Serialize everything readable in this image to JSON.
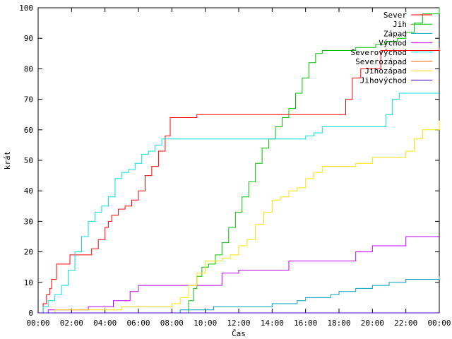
{
  "chart_data": {
    "type": "line",
    "xlabel": "Čas",
    "ylabel": "krát",
    "xlim": [
      0,
      24
    ],
    "ylim": [
      0,
      100
    ],
    "xticks": [
      "00:00",
      "02:00",
      "04:00",
      "06:00",
      "08:00",
      "10:00",
      "12:00",
      "14:00",
      "16:00",
      "18:00",
      "20:00",
      "22:00",
      "00:00"
    ],
    "yticks": [
      0,
      10,
      20,
      30,
      40,
      50,
      60,
      70,
      80,
      90,
      100
    ],
    "grid": false,
    "legend_position": "top-right",
    "series": [
      {
        "name": "Sever",
        "color": "#ff0000",
        "x": [
          0,
          0.3,
          0.5,
          0.7,
          0.8,
          1.1,
          1.7,
          1.9,
          2.8,
          3.2,
          3.6,
          4.0,
          4.2,
          4.4,
          4.8,
          5.2,
          5.6,
          6.0,
          6.4,
          6.8,
          7.2,
          7.6,
          7.9,
          9.5,
          18.0,
          18.4,
          18.8,
          19.3,
          20.5,
          24
        ],
        "y": [
          0,
          3,
          6,
          8,
          11,
          16,
          16,
          19,
          19,
          21,
          24,
          28,
          30,
          32,
          34,
          35,
          37,
          40,
          45,
          48,
          53,
          58,
          64,
          65,
          65,
          70,
          77,
          80,
          86,
          87
        ]
      },
      {
        "name": "Jih",
        "color": "#00c000",
        "x": [
          0,
          8.8,
          9.0,
          9.3,
          9.5,
          9.8,
          10.2,
          10.6,
          11.0,
          11.4,
          11.8,
          12.2,
          12.6,
          13.0,
          13.4,
          13.8,
          14.2,
          14.6,
          15.0,
          15.4,
          15.8,
          16.2,
          16.6,
          17.0,
          17.4,
          17.8,
          18.5,
          19.0,
          20.2,
          20.8,
          21.5,
          22.0,
          22.5,
          23.0,
          24
        ],
        "y": [
          0,
          0,
          4,
          8,
          12,
          15,
          16,
          19,
          23,
          28,
          33,
          38,
          43,
          49,
          54,
          57,
          61,
          64,
          67,
          72,
          77,
          82,
          85,
          86,
          86,
          86,
          86,
          87,
          88,
          89,
          90,
          92,
          95,
          98,
          100
        ]
      },
      {
        "name": "Západ",
        "color": "#00a0c0",
        "x": [
          0,
          8.0,
          8.5,
          9.5,
          10.5,
          12.0,
          14.0,
          14.5,
          15.5,
          16.0,
          17.5,
          18.0,
          19.0,
          20.0,
          21.0,
          22.0,
          24
        ],
        "y": [
          0,
          0,
          1,
          1,
          2,
          2,
          3,
          3,
          4,
          5,
          6,
          7,
          8,
          9,
          10,
          11,
          12
        ]
      },
      {
        "name": "Východ",
        "color": "#c000ff",
        "x": [
          0,
          0.6,
          1.5,
          2.0,
          3.0,
          4.5,
          5.5,
          6.0,
          7.0,
          8.0,
          9.0,
          9.5,
          10.0,
          11.0,
          12.0,
          13.0,
          14.0,
          15.0,
          16.0,
          17.0,
          18.0,
          19.0,
          20.0,
          21.0,
          22.0,
          24
        ],
        "y": [
          0,
          1,
          1,
          1,
          2,
          4,
          7,
          9,
          9,
          9,
          9,
          9,
          9,
          13,
          14,
          14,
          14,
          17,
          17,
          17,
          17,
          20,
          22,
          22,
          25,
          25
        ]
      },
      {
        "name": "Severovýchod",
        "color": "#00e0e0",
        "x": [
          0,
          0.3,
          0.6,
          1.0,
          1.4,
          1.8,
          2.2,
          2.6,
          3.0,
          3.4,
          3.8,
          4.2,
          4.6,
          5.0,
          5.4,
          5.8,
          6.2,
          6.6,
          7.0,
          7.4,
          8.0,
          10.0,
          12.0,
          14.0,
          15.5,
          16.0,
          16.5,
          17.0,
          18.0,
          19.0,
          20.0,
          20.5,
          20.8,
          21.2,
          21.6,
          22.0,
          24
        ],
        "y": [
          0,
          2,
          4,
          6,
          9,
          14,
          20,
          25,
          30,
          33,
          35,
          38,
          44,
          46,
          47,
          49,
          52,
          53,
          55,
          57,
          57,
          57,
          57,
          57,
          57,
          58,
          59,
          61,
          61,
          61,
          61,
          61,
          65,
          70,
          72,
          72,
          72
        ]
      },
      {
        "name": "Severozápad",
        "color": "#ff6000",
        "x": [
          0,
          24
        ],
        "y": [
          0,
          0
        ]
      },
      {
        "name": "Jihozápad",
        "color": "#ffe000",
        "x": [
          0,
          1.0,
          4.0,
          5.0,
          7.0,
          8.0,
          8.5,
          9.0,
          9.5,
          10.0,
          10.5,
          11.0,
          11.5,
          12.0,
          12.5,
          13.0,
          13.5,
          14.0,
          14.5,
          15.0,
          15.5,
          16.0,
          16.5,
          17.0,
          17.5,
          18.0,
          18.5,
          19.0,
          20.0,
          21.0,
          22.0,
          22.5,
          23.0,
          24
        ],
        "y": [
          0,
          1,
          1,
          2,
          2,
          3,
          5,
          9,
          13,
          17,
          17,
          18,
          19,
          22,
          24,
          29,
          33,
          37,
          38,
          40,
          41,
          44,
          46,
          48,
          48,
          48,
          48,
          49,
          51,
          51,
          53,
          57,
          60,
          63
        ]
      },
      {
        "name": "Jihovýchod",
        "color": "#4000c0",
        "x": [
          0,
          24
        ],
        "y": [
          0,
          0
        ]
      }
    ]
  }
}
